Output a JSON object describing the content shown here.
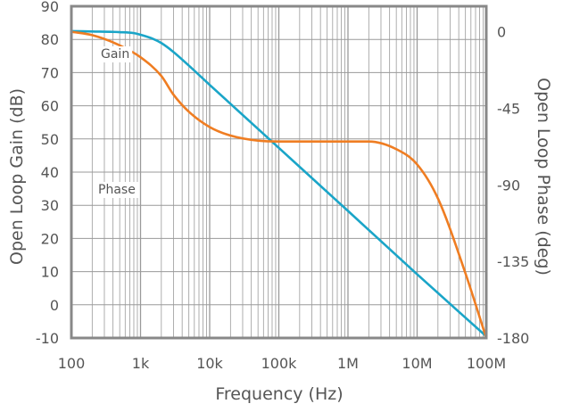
{
  "chart_data": {
    "type": "line",
    "xscale": "log",
    "xlim": [
      100,
      100000000
    ],
    "x_ticks": [
      100,
      1000,
      10000,
      100000,
      1000000,
      10000000,
      100000000
    ],
    "x_tick_labels": [
      "100",
      "1k",
      "10k",
      "100k",
      "1M",
      "10M",
      "100M"
    ],
    "xlabel": "Frequency (Hz)",
    "ylabel": "Open Loop Gain (dB)",
    "ylim": [
      -10,
      90
    ],
    "y_ticks": [
      -10,
      0,
      10,
      20,
      30,
      40,
      50,
      60,
      70,
      80,
      90
    ],
    "y_tick_labels": [
      "-10",
      "0",
      "10",
      "20",
      "30",
      "40",
      "50",
      "60",
      "70",
      "80",
      "90"
    ],
    "y2label": "Open Loop Phase (deg)",
    "y2lim": [
      -180,
      15
    ],
    "y2_ticks": [
      0,
      -45,
      -90,
      -135,
      -180
    ],
    "y2_tick_labels": [
      "0",
      "-45",
      "-90",
      "-135",
      "-180"
    ],
    "grid": true,
    "colors": {
      "gain": "#1aa5c8",
      "phase": "#ef7d22",
      "frame": "#888888",
      "grid": "#9a9a9a",
      "text": "#555555"
    },
    "series": [
      {
        "name": "Gain",
        "axis": "y",
        "color": "#1aa5c8",
        "x": [
          100,
          200,
          500,
          800,
          1000,
          1500,
          2000,
          3000,
          5000,
          10000,
          100000,
          1000000,
          10000000,
          100000000
        ],
        "y": [
          82.5,
          82.4,
          82.2,
          81.9,
          81.4,
          80.2,
          78.9,
          76.2,
          72.1,
          66.3,
          47.3,
          28.3,
          9.2,
          -9.5
        ]
      },
      {
        "name": "Phase",
        "axis": "y2",
        "color": "#ef7d22",
        "x": [
          100,
          200,
          500,
          1000,
          2000,
          3000,
          5000,
          10000,
          20000,
          50000,
          100000,
          1000000,
          2000000,
          5000000,
          10000000,
          20000000,
          50000000,
          100000000
        ],
        "y": [
          0,
          -2,
          -8,
          -15,
          -26,
          -37,
          -47,
          -56,
          -61,
          -64,
          -64.5,
          -64.5,
          -64.5,
          -69,
          -78,
          -98,
          -142,
          -180
        ]
      }
    ]
  }
}
